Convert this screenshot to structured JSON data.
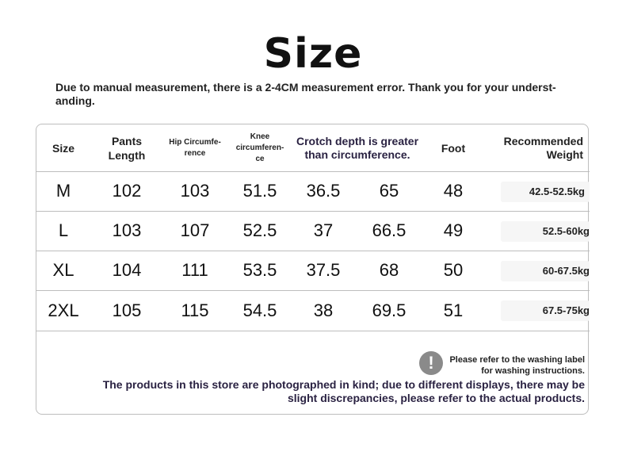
{
  "title": "Size",
  "note": "Due to manual measurement, there is a 2-4CM measurement error. Thank you for your underst- anding.",
  "table": {
    "headers": {
      "size": "Size",
      "pants_length": "Pants Length",
      "hip": "Hip Circumfe- rence",
      "knee": "Knee circumferen- ce",
      "crotch": "Crotch depth is greater than circumference.",
      "foot": "Foot",
      "weight": "Recommended Weight"
    },
    "rows": [
      {
        "size": "M",
        "pants": "102",
        "hip": "103",
        "knee": "51.5",
        "crotch": "36.5",
        "extra": "65",
        "foot": "48",
        "weight": "42.5-52.5kg"
      },
      {
        "size": "L",
        "pants": "103",
        "hip": "107",
        "knee": "52.5",
        "crotch": "37",
        "extra": "66.5",
        "foot": "49",
        "weight": "52.5-60kg"
      },
      {
        "size": "XL",
        "pants": "104",
        "hip": "111",
        "knee": "53.5",
        "crotch": "37.5",
        "extra": "68",
        "foot": "50",
        "weight": "60-67.5kg"
      },
      {
        "size": "2XL",
        "pants": "105",
        "hip": "115",
        "knee": "54.5",
        "crotch": "38",
        "extra": "69.5",
        "foot": "51",
        "weight": "67.5-75kg"
      }
    ]
  },
  "footer": {
    "icon": "exclamation-icon",
    "icon_glyph": "!",
    "wash_note": "Please refer to the washing label for washing instructions.",
    "disclaimer": "The products in this store are photographed in kind; due to different displays, there may be slight discrepancies, please refer to the actual products."
  }
}
